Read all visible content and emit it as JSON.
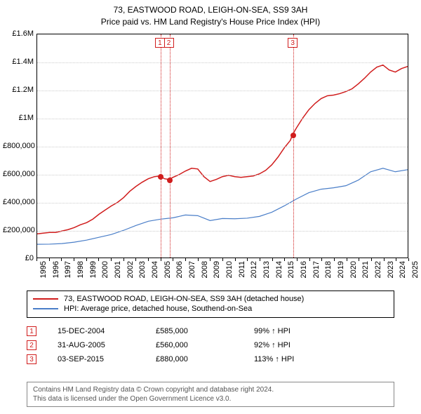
{
  "title": "73, EASTWOOD ROAD, LEIGH-ON-SEA, SS9 3AH",
  "subtitle": "Price paid vs. HM Land Registry's House Price Index (HPI)",
  "chart": {
    "type": "line",
    "x_axis": {
      "min": 1995,
      "max": 2025,
      "ticks": [
        1995,
        1996,
        1997,
        1998,
        1999,
        2000,
        2001,
        2002,
        2003,
        2004,
        2005,
        2006,
        2007,
        2008,
        2009,
        2010,
        2011,
        2012,
        2013,
        2014,
        2015,
        2016,
        2017,
        2018,
        2019,
        2020,
        2021,
        2022,
        2023,
        2024,
        2025
      ]
    },
    "y_axis": {
      "min": 0,
      "max": 1600000,
      "ticks": [
        0,
        200000,
        400000,
        600000,
        800000,
        1000000,
        1200000,
        1400000,
        1600000
      ],
      "tick_labels": [
        "£0",
        "£200,000",
        "£400,000",
        "£600,000",
        "£800,000",
        "£1M",
        "£1.2M",
        "£1.4M",
        "£1.6M"
      ]
    },
    "grid_color": "#cccccc",
    "background_color": "#ffffff",
    "border_color": "#000000",
    "series": [
      {
        "name": "73, EASTWOOD ROAD, LEIGH-ON-SEA, SS9 3AH (detached house)",
        "color": "#d01c1c",
        "width": 1.5,
        "points": [
          [
            1995.0,
            170000
          ],
          [
            1995.5,
            175000
          ],
          [
            1996.0,
            180000
          ],
          [
            1996.5,
            180000
          ],
          [
            1997.0,
            190000
          ],
          [
            1997.5,
            200000
          ],
          [
            1998.0,
            215000
          ],
          [
            1998.5,
            235000
          ],
          [
            1999.0,
            250000
          ],
          [
            1999.5,
            275000
          ],
          [
            2000.0,
            310000
          ],
          [
            2000.5,
            340000
          ],
          [
            2001.0,
            370000
          ],
          [
            2001.5,
            395000
          ],
          [
            2002.0,
            430000
          ],
          [
            2002.5,
            475000
          ],
          [
            2003.0,
            510000
          ],
          [
            2003.5,
            540000
          ],
          [
            2004.0,
            565000
          ],
          [
            2004.5,
            580000
          ],
          [
            2004.96,
            585000
          ],
          [
            2005.3,
            565000
          ],
          [
            2005.67,
            560000
          ],
          [
            2006.0,
            575000
          ],
          [
            2006.5,
            595000
          ],
          [
            2007.0,
            620000
          ],
          [
            2007.5,
            640000
          ],
          [
            2008.0,
            635000
          ],
          [
            2008.5,
            580000
          ],
          [
            2009.0,
            545000
          ],
          [
            2009.5,
            560000
          ],
          [
            2010.0,
            580000
          ],
          [
            2010.5,
            590000
          ],
          [
            2011.0,
            580000
          ],
          [
            2011.5,
            575000
          ],
          [
            2012.0,
            580000
          ],
          [
            2012.5,
            585000
          ],
          [
            2013.0,
            600000
          ],
          [
            2013.5,
            625000
          ],
          [
            2014.0,
            665000
          ],
          [
            2014.5,
            720000
          ],
          [
            2015.0,
            785000
          ],
          [
            2015.5,
            840000
          ],
          [
            2015.67,
            880000
          ],
          [
            2016.0,
            930000
          ],
          [
            2016.5,
            1000000
          ],
          [
            2017.0,
            1060000
          ],
          [
            2017.5,
            1105000
          ],
          [
            2018.0,
            1140000
          ],
          [
            2018.5,
            1160000
          ],
          [
            2019.0,
            1165000
          ],
          [
            2019.5,
            1175000
          ],
          [
            2020.0,
            1190000
          ],
          [
            2020.5,
            1210000
          ],
          [
            2021.0,
            1245000
          ],
          [
            2021.5,
            1285000
          ],
          [
            2022.0,
            1330000
          ],
          [
            2022.5,
            1365000
          ],
          [
            2023.0,
            1380000
          ],
          [
            2023.5,
            1345000
          ],
          [
            2024.0,
            1330000
          ],
          [
            2024.5,
            1355000
          ],
          [
            2025.0,
            1370000
          ]
        ]
      },
      {
        "name": "HPI: Average price, detached house, Southend-on-Sea",
        "color": "#4a7ec8",
        "width": 1.2,
        "points": [
          [
            1995.0,
            95000
          ],
          [
            1996.0,
            96000
          ],
          [
            1997.0,
            100000
          ],
          [
            1998.0,
            110000
          ],
          [
            1999.0,
            125000
          ],
          [
            2000.0,
            145000
          ],
          [
            2001.0,
            165000
          ],
          [
            2002.0,
            195000
          ],
          [
            2003.0,
            230000
          ],
          [
            2004.0,
            260000
          ],
          [
            2005.0,
            275000
          ],
          [
            2006.0,
            285000
          ],
          [
            2007.0,
            305000
          ],
          [
            2008.0,
            300000
          ],
          [
            2009.0,
            265000
          ],
          [
            2010.0,
            280000
          ],
          [
            2011.0,
            278000
          ],
          [
            2012.0,
            282000
          ],
          [
            2013.0,
            295000
          ],
          [
            2014.0,
            325000
          ],
          [
            2015.0,
            370000
          ],
          [
            2016.0,
            420000
          ],
          [
            2017.0,
            465000
          ],
          [
            2018.0,
            490000
          ],
          [
            2019.0,
            500000
          ],
          [
            2020.0,
            515000
          ],
          [
            2021.0,
            555000
          ],
          [
            2022.0,
            615000
          ],
          [
            2023.0,
            640000
          ],
          [
            2024.0,
            615000
          ],
          [
            2025.0,
            630000
          ]
        ]
      }
    ],
    "sale_markers": [
      {
        "ref": "1",
        "x": 2004.96,
        "y": 585000
      },
      {
        "ref": "2",
        "x": 2005.67,
        "y": 560000
      },
      {
        "ref": "3",
        "x": 2015.67,
        "y": 880000
      }
    ]
  },
  "legend": {
    "items": [
      {
        "color": "#d01c1c",
        "label": "73, EASTWOOD ROAD, LEIGH-ON-SEA, SS9 3AH (detached house)"
      },
      {
        "color": "#4a7ec8",
        "label": "HPI: Average price, detached house, Southend-on-Sea"
      }
    ]
  },
  "sales_table": {
    "rows": [
      {
        "ref": "1",
        "date": "15-DEC-2004",
        "price": "£585,000",
        "hpi": "99% ↑ HPI"
      },
      {
        "ref": "2",
        "date": "31-AUG-2005",
        "price": "£560,000",
        "hpi": "92% ↑ HPI"
      },
      {
        "ref": "3",
        "date": "03-SEP-2015",
        "price": "£880,000",
        "hpi": "113% ↑ HPI"
      }
    ]
  },
  "footer": {
    "line1": "Contains HM Land Registry data © Crown copyright and database right 2024.",
    "line2": "This data is licensed under the Open Government Licence v3.0."
  }
}
